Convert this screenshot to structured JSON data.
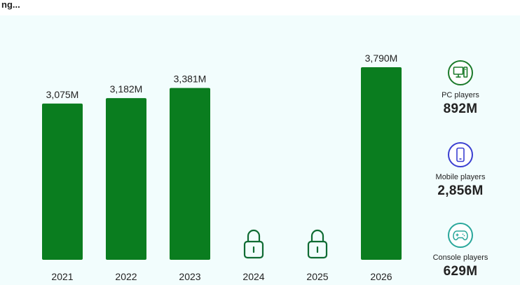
{
  "header": {
    "title": "ng... "
  },
  "chart_data": {
    "type": "bar",
    "categories": [
      "2021",
      "2022",
      "2023",
      "2024",
      "2025",
      "2026"
    ],
    "values": [
      3075,
      3182,
      3381,
      null,
      null,
      3790
    ],
    "value_labels": [
      "3,075M",
      "3,182M",
      "3,381M",
      "",
      "",
      "3,790M"
    ],
    "locked": [
      false,
      false,
      false,
      true,
      true,
      false
    ],
    "title": "",
    "xlabel": "",
    "ylabel": "",
    "ylim": [
      0,
      3900
    ],
    "grid": false,
    "bar_color": "#0a7d1f",
    "lock_color": "#0f6b33"
  },
  "breakdown": [
    {
      "label": "PC players",
      "value": "892M",
      "icon": "desktop-computer-icon",
      "color": "#1b7a2a"
    },
    {
      "label": "Mobile players",
      "value": "2,856M",
      "icon": "mobile-phone-icon",
      "color": "#3a3fd1"
    },
    {
      "label": "Console players",
      "value": "629M",
      "icon": "gamepad-icon",
      "color": "#2aa79b"
    }
  ]
}
